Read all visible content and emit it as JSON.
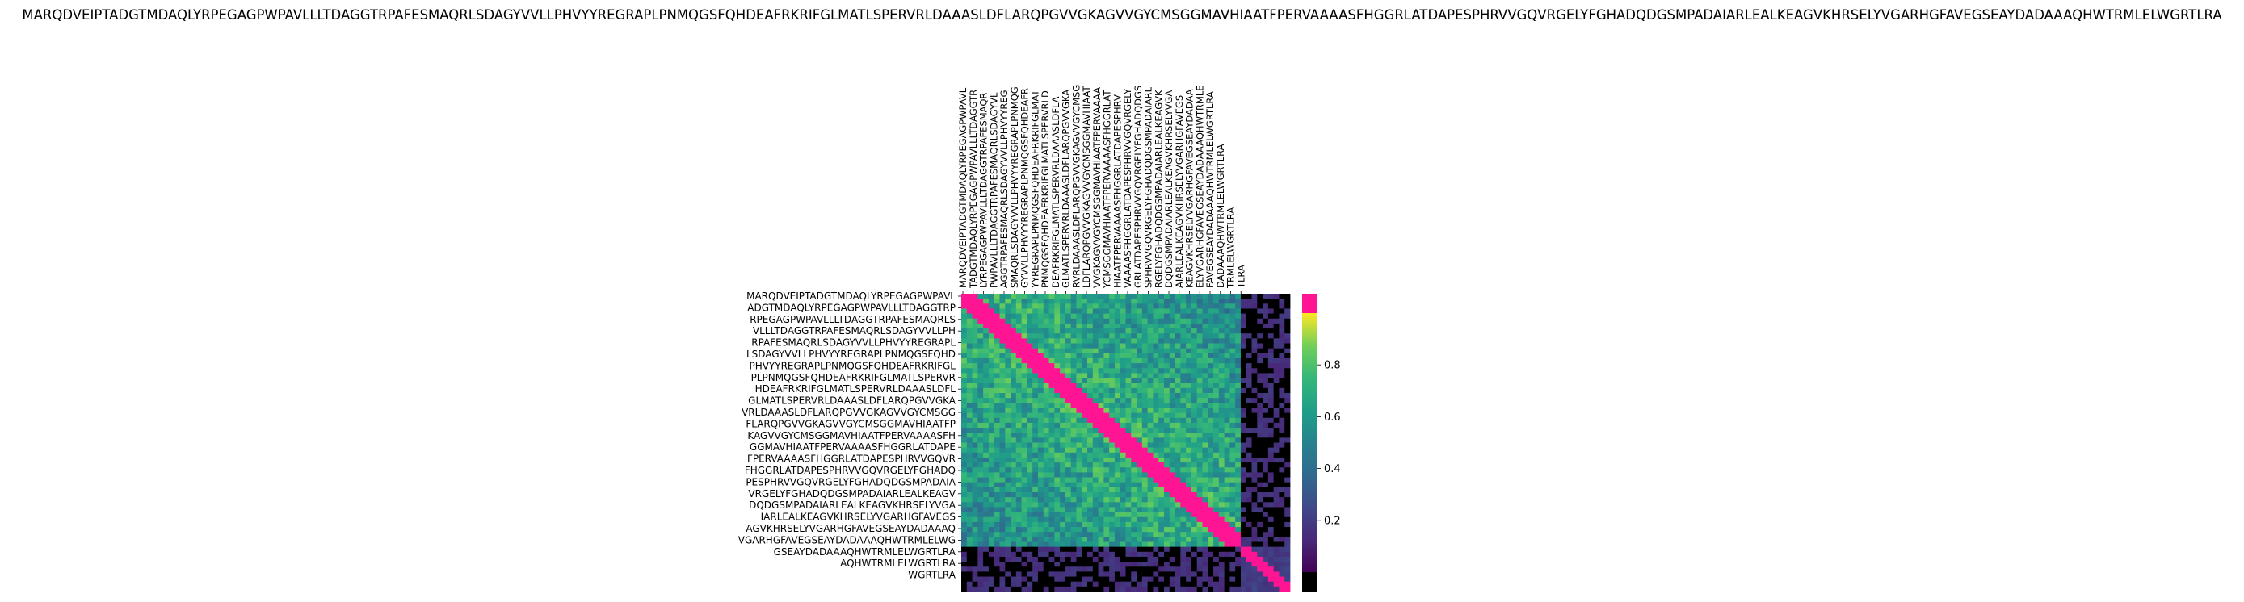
{
  "chart_data": {
    "type": "heatmap",
    "title": "MARQDVEIPTADGTMDAQLYRPEGAGPWPAVLLLTDAGGTRPAFESMAQRLSDAGYVVLLPHVYYREGRAPLPNMQGSFQHDEAFRKRIFGLMATLSPERVRLDAAASLDFLARQPGVVGKAGVVGYCMSGGMAVHIAATFPERVAAAASFHGGRLATDAPESPHRVVGQVRGELYFGHADQDGSMPADAIARLEALKEAGVKHRSELYVGARHGFAVEGSEAYDADAAAQHWTRMLELWGRTLRA",
    "x_tick_labels": [
      "MARQDVEIPTADGTMDAQLYRPEGAGPWPAVL",
      "TADGTMDAQLYRPEGAGPWPAVLLLTDAGGTR",
      "LYRPEGAGPWPAVLLLTDAGGTRPAFESMAQR",
      "PWPAVLLLTDAGGTRPAFESMAQRLSDAGYVL",
      "AGGTRPAFESMAQRLSDAGYVVLLPHVYYREG",
      "SMAQRLSDAGYVVLLPHVYYREGRAPLPNMQG",
      "GYVVLLPHVYYREGRAPLPNMQGSFQHDEAFR",
      "YYREGRAPLPNMQGSFQHDEAFRKRIFGLMAT",
      "PNMQGSFQHDEAFRKRIFGLMATLSPERVRLD",
      "DEAFRKRIFGLMATLSPERVRLDAAASLDFLA",
      "GLMATLSPERVRLDAAASLDFLARQPGVVGKA",
      "RVRLDAAASLDFLARQPGVVGKAGVVGYCMSG",
      "LDFLARQPGVVGKAGVVGYCMSGGMAVHIAAT",
      "VVGKAGVVGYCMSGGMAVHIAATFPERVAAAA",
      "YCMSGGMAVHIAATFPERVAAAASFHGGRLAT",
      "HIAATFPERVAAAASFHGGRLATDAPESPHRV",
      "VAAAASFHGGRLATDAPESPHRVVGQVRGELY",
      "GRLATDAPESPHRVVGQVRGELYFGHADQDGS",
      "SPHRVVGQVRGELYFGHADQDGSMPADAIARL",
      "RGELYFGHADQDGSMPADAIARLEALKEAGVK",
      "DQDGSMPADAIARLEALKEAGVKHRSELYVGA",
      "AIARLEALKEAGVKHRSELYVGARHGFAVEGS",
      "KEAGVKHRSELYVGARHGFAVEGSEAYDADAA",
      "ELYVGARHGFAVEGSEAYDADAAAQHWTRMLE",
      "FAVEGSEAYDADAAAQHWTRMLELWGRTLRA",
      "DADAAAQHWTRMLELWGRTLRA",
      "TRMLELWGRTLRA",
      "TLRA"
    ],
    "y_tick_labels": [
      "MARQDVEIPTADGTMDAQLYRPEGAGPWPAVL",
      "ADGTMDAQLYRPEGAGPWPAVLLLTDAGGTRP",
      "RPEGAGPWPAVLLLTDAGGTRPAFESMAQRLS",
      "VLLLTDAGGTRPAFESMAQRLSDAGYVVLLPH",
      "RPAFESMAQRLSDAGYVVLLPHVYYREGRAPL",
      "LSDAGYVVLLPHVYYREGRAPLPNMQGSFQHD",
      "PHVYYREGRAPLPNMQGSFQHDEAFRKRIFGL",
      "PLPNMQGSFQHDEAFRKRIFGLMATLSPERVR",
      "HDEAFRKRIFGLMATLSPERVRLDAAASLDFL",
      "GLMATLSPERVRLDAAASLDFLARQPGVVGKA",
      "VRLDAAASLDFLARQPGVVGKAGVVGYCMSGG",
      "FLARQPGVVGKAGVVGYCMSGGMAVHIAATFP",
      "KAGVVGYCMSGGMAVHIAATFPERVAAAASFH",
      "GGMAVHIAATFPERVAAAASFHGGRLATDAPE",
      "FPERVAAAASFHGGRLATDAPESPHRVVGQVR",
      "FHGGRLATDAPESPHRVVGQVRGELYFGHADQ",
      "PESPHRVVGQVRGELYFGHADQDGSMPADAIA",
      "VRGELYFGHADQDGSMPADAIARLEALKEAGV",
      "DQDGSMPADAIARLEALKEAGVKHRSELYVGA",
      "IARLEALKEAGVKHRSELYVGARHGFAVEGS",
      "AGVKHRSELYVGARHGFAVEGSEAYDADAAAQ",
      "VGARHGFAVEGSEAYDADAAAQHWTRMLELWG",
      "GSEAYDADAAAQHWTRMLELWGRTLRA",
      "AQHWTRMLELWGRTLRA",
      "WGRTLRA"
    ],
    "colorbar": {
      "ticks": [
        0.2,
        0.4,
        0.6,
        0.8
      ],
      "range": [
        0.0,
        1.0
      ],
      "colormap": "viridis",
      "overflow_color": "#ff1493",
      "underflow_color": "#000000"
    },
    "matrix_note": "",
    "grid": false
  }
}
